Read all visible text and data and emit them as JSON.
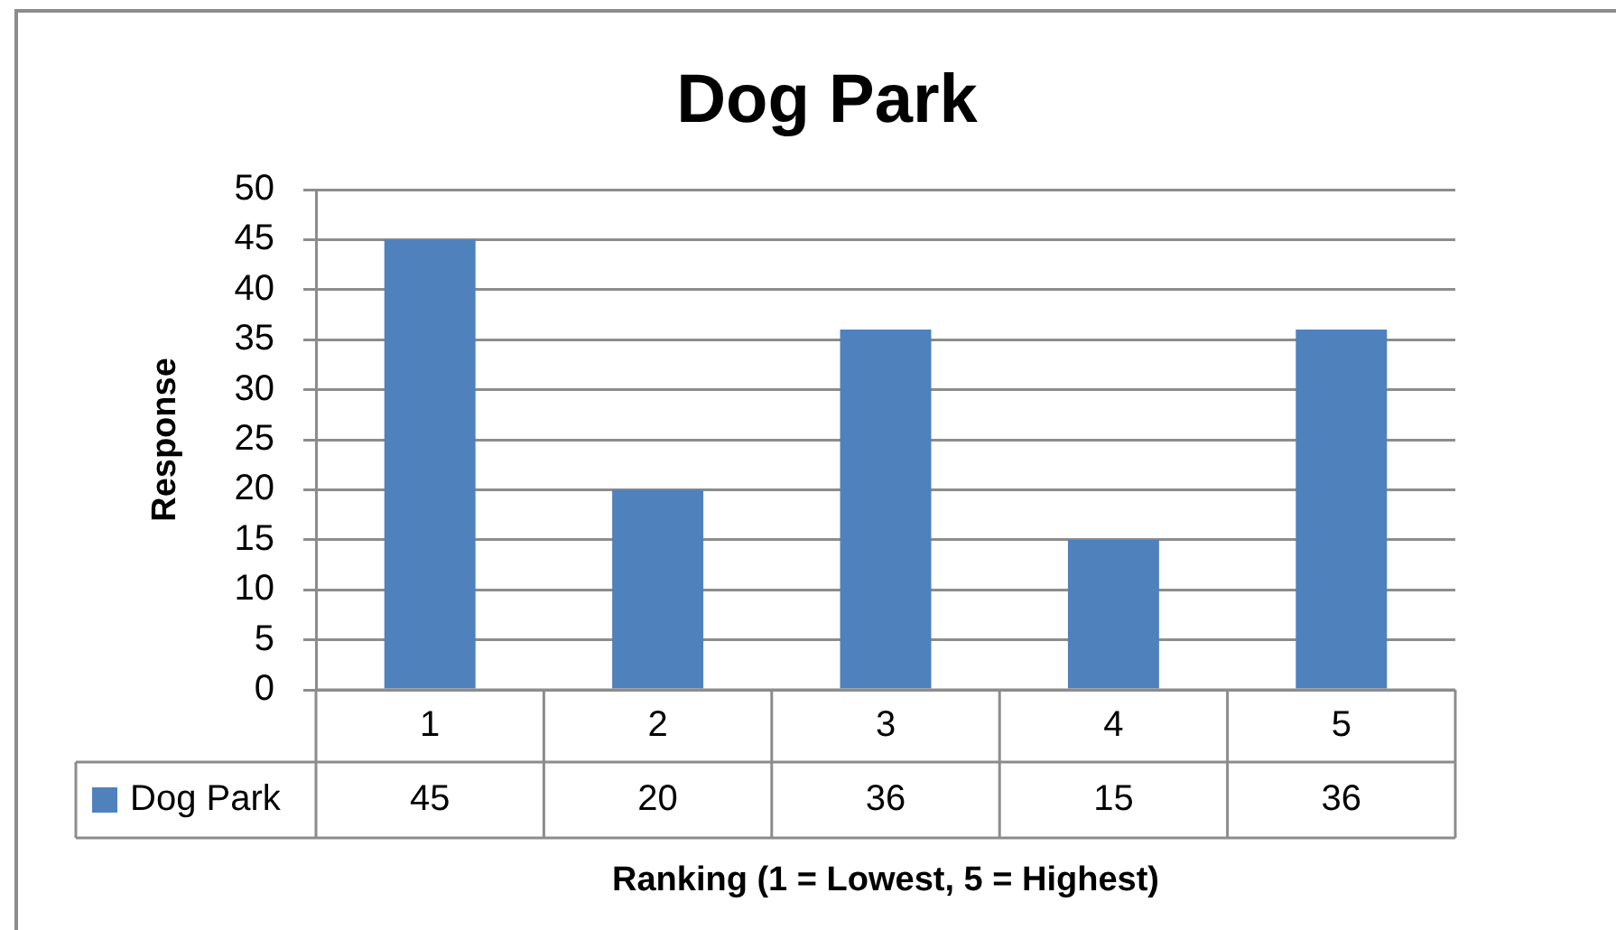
{
  "chart_data": {
    "type": "bar",
    "title": "Dog Park",
    "xlabel": "Ranking (1 = Lowest, 5 = Highest)",
    "ylabel": "Response",
    "categories": [
      "1",
      "2",
      "3",
      "4",
      "5"
    ],
    "series": [
      {
        "name": "Dog Park",
        "color": "#4f81bd",
        "values": [
          45,
          20,
          36,
          15,
          36
        ]
      }
    ],
    "ylim": [
      0,
      50
    ],
    "yticks": [
      0,
      5,
      10,
      15,
      20,
      25,
      30,
      35,
      40,
      45,
      50
    ],
    "grid": "y",
    "legend": "bottom",
    "data_labels": true
  }
}
